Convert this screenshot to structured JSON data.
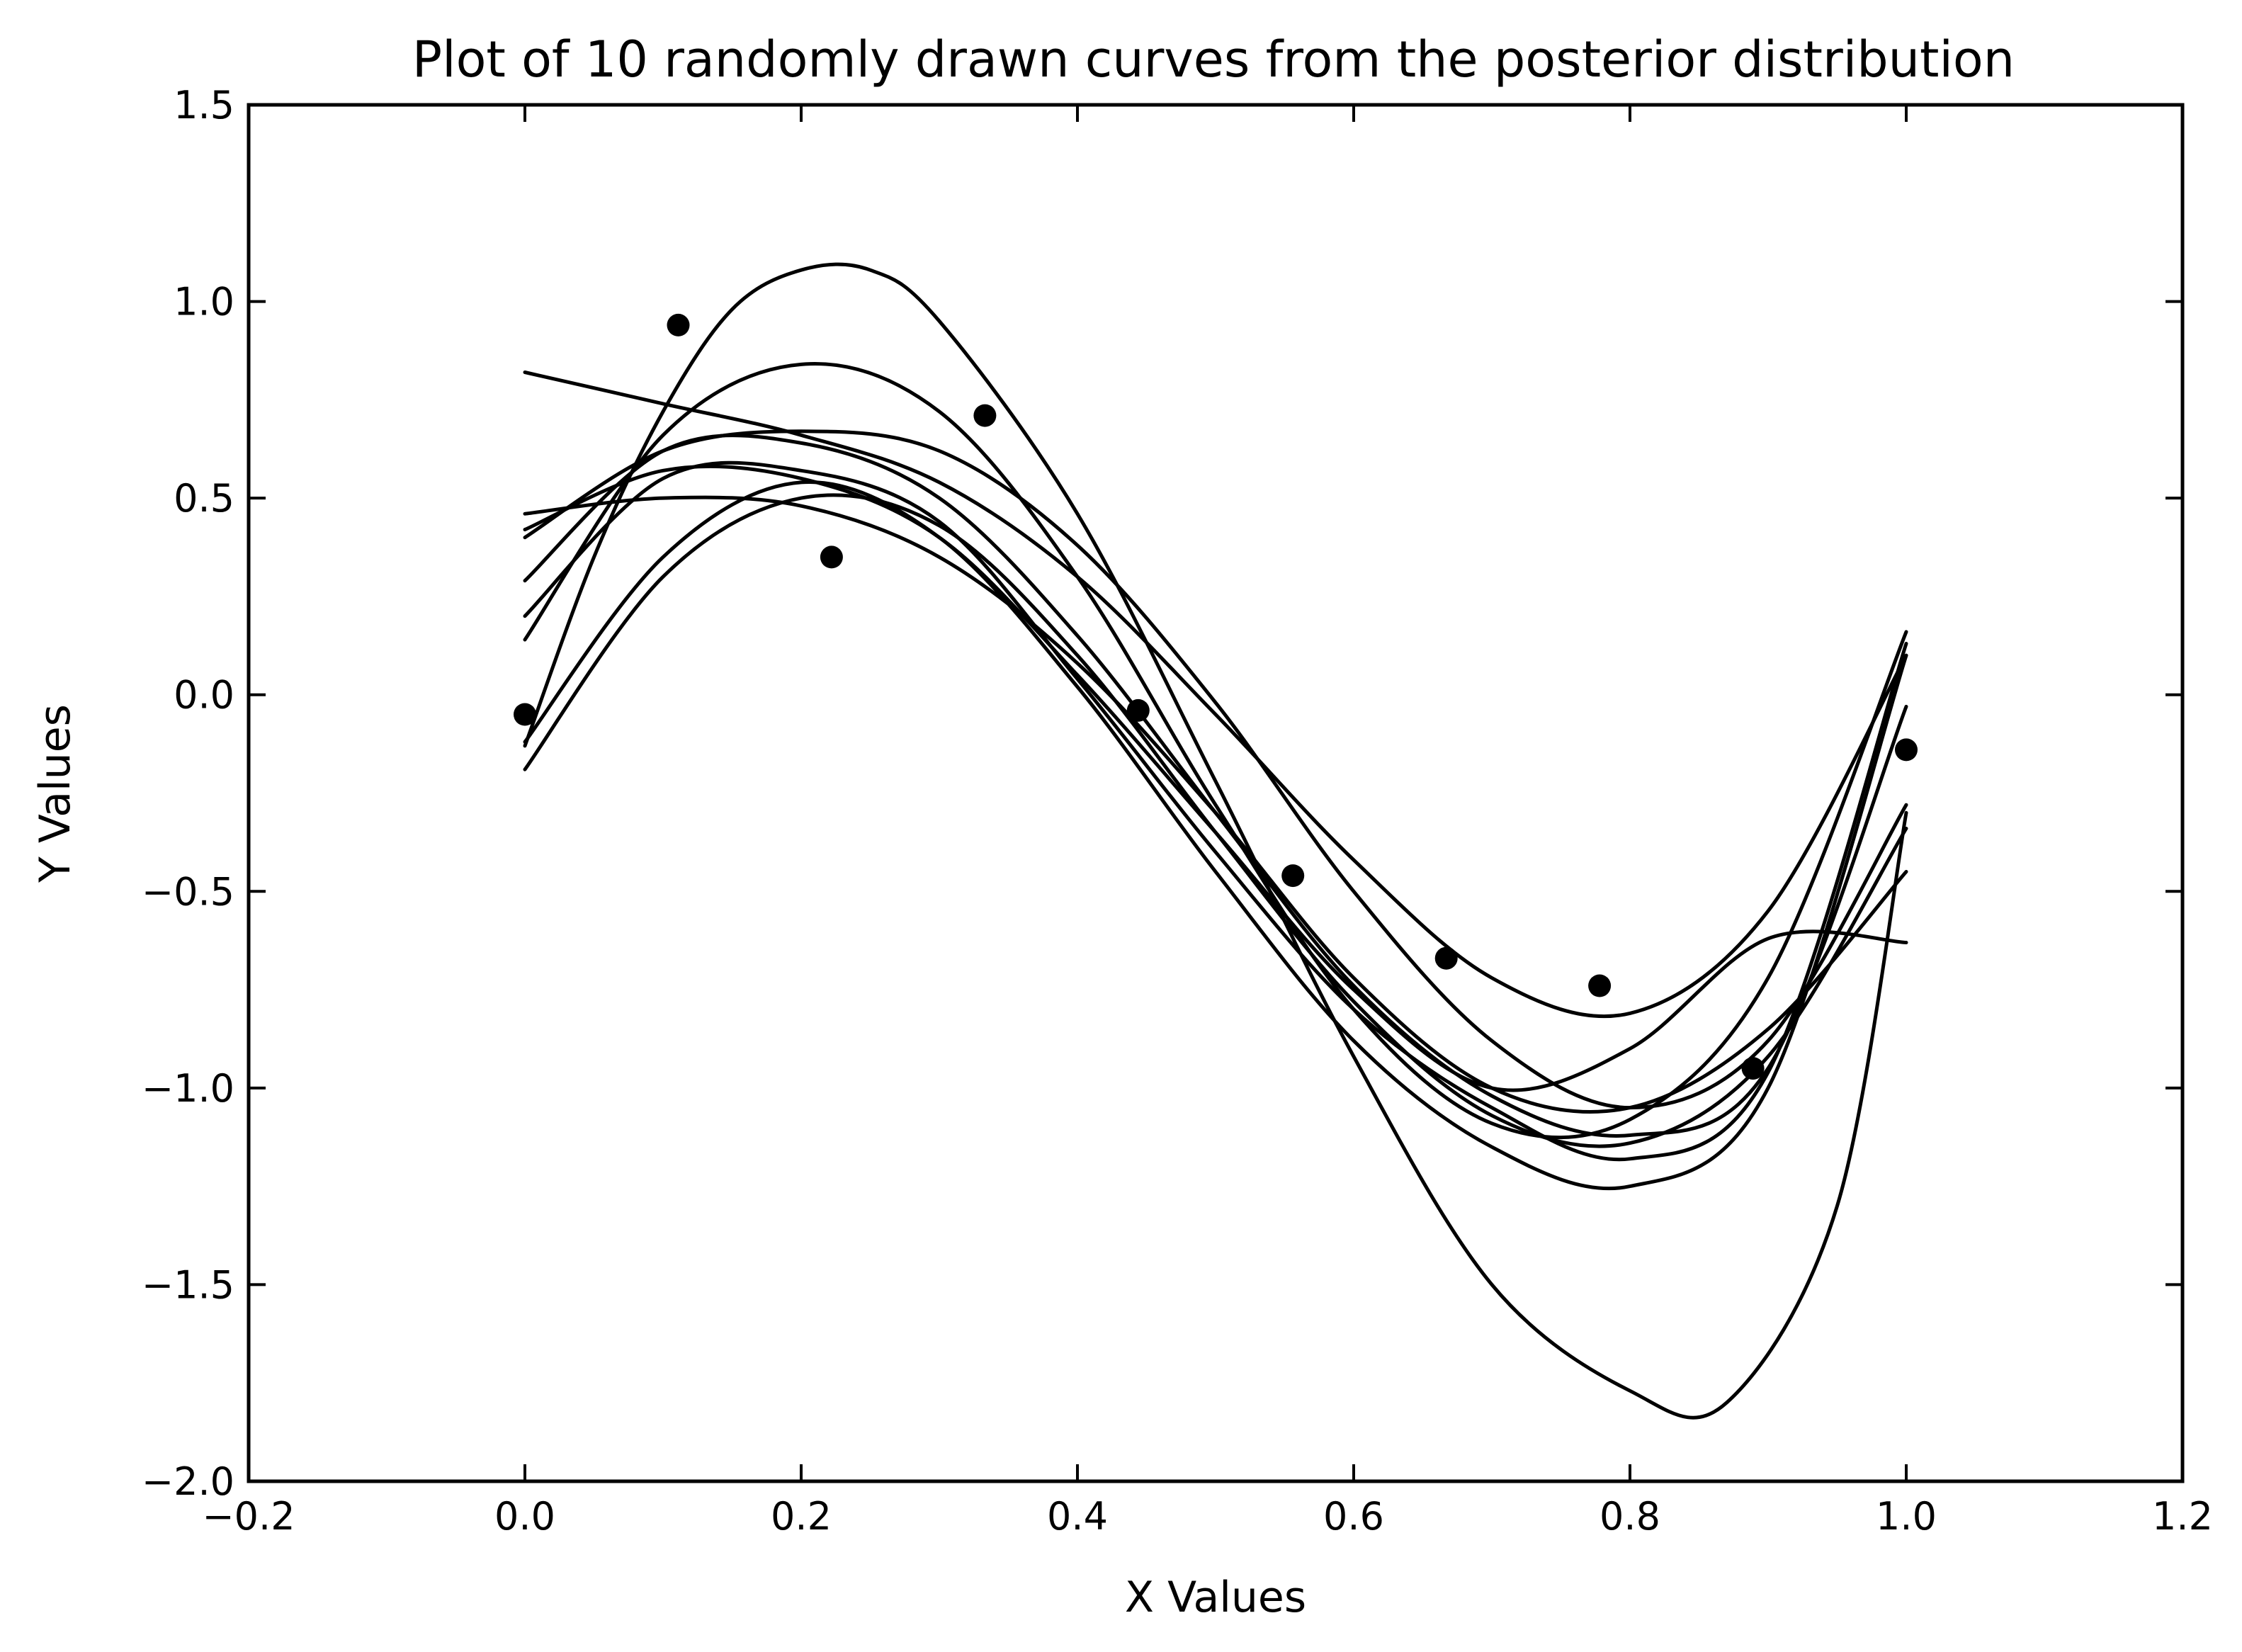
{
  "chart_data": {
    "type": "line",
    "title": "Plot of 10 randomly drawn curves from the posterior distribution",
    "xlabel": "X Values",
    "ylabel": "Y Values",
    "xlim": [
      -0.2,
      1.2
    ],
    "ylim": [
      -2.0,
      1.5
    ],
    "xticks": [
      -0.2,
      0.0,
      0.2,
      0.4,
      0.6,
      0.8,
      1.0,
      1.2
    ],
    "xtick_labels": [
      "−0.2",
      "0.0",
      "0.2",
      "0.4",
      "0.6",
      "0.8",
      "1.0",
      "1.2"
    ],
    "yticks": [
      -2.0,
      -1.5,
      -1.0,
      -0.5,
      0.0,
      0.5,
      1.0,
      1.5
    ],
    "ytick_labels": [
      "−2.0",
      "−1.5",
      "−1.0",
      "−0.5",
      "0.0",
      "0.5",
      "1.0",
      "1.5"
    ],
    "grid": false,
    "legend": "none",
    "color": "#000000",
    "scatter": {
      "x": [
        0.0,
        0.111,
        0.222,
        0.333,
        0.444,
        0.556,
        0.667,
        0.778,
        0.889,
        1.0
      ],
      "y": [
        -0.05,
        0.94,
        0.35,
        0.71,
        -0.04,
        -0.46,
        -0.67,
        -0.74,
        -0.95,
        -0.14
      ]
    },
    "series": [
      {
        "x": [
          0.0,
          0.1,
          0.2,
          0.3,
          0.4,
          0.5,
          0.6,
          0.7,
          0.8,
          0.9,
          1.0
        ],
        "y": [
          0.82,
          0.74,
          0.66,
          0.54,
          0.3,
          -0.05,
          -0.42,
          -0.72,
          -0.81,
          -0.55,
          0.1
        ]
      },
      {
        "x": [
          0.0,
          0.05,
          0.1,
          0.15,
          0.2,
          0.25,
          0.3,
          0.4,
          0.5,
          0.6,
          0.7,
          0.8,
          0.87,
          0.95,
          1.0
        ],
        "y": [
          -0.13,
          0.35,
          0.72,
          0.98,
          1.08,
          1.08,
          0.95,
          0.46,
          -0.22,
          -0.92,
          -1.5,
          -1.77,
          -1.8,
          -1.3,
          -0.3
        ]
      },
      {
        "x": [
          0.0,
          0.1,
          0.2,
          0.3,
          0.4,
          0.5,
          0.6,
          0.7,
          0.8,
          0.9,
          1.0
        ],
        "y": [
          0.14,
          0.66,
          0.84,
          0.72,
          0.3,
          -0.28,
          -0.8,
          -1.09,
          -1.08,
          -0.72,
          0.16
        ]
      },
      {
        "x": [
          0.0,
          0.1,
          0.2,
          0.3,
          0.4,
          0.5,
          0.6,
          0.7,
          0.8,
          0.9,
          1.0
        ],
        "y": [
          0.4,
          0.62,
          0.67,
          0.62,
          0.38,
          -0.02,
          -0.5,
          -0.88,
          -1.05,
          -0.88,
          -0.28
        ]
      },
      {
        "x": [
          0.0,
          0.1,
          0.2,
          0.3,
          0.4,
          0.5,
          0.6,
          0.7,
          0.8,
          0.9,
          1.0
        ],
        "y": [
          0.29,
          0.62,
          0.64,
          0.5,
          0.15,
          -0.3,
          -0.74,
          -1.02,
          -1.12,
          -0.95,
          -0.03
        ]
      },
      {
        "x": [
          0.0,
          0.1,
          0.2,
          0.3,
          0.4,
          0.5,
          0.6,
          0.7,
          0.8,
          0.9,
          1.0
        ],
        "y": [
          0.46,
          0.5,
          0.48,
          0.35,
          0.08,
          -0.3,
          -0.72,
          -1.0,
          -1.05,
          -0.85,
          -0.45
        ]
      },
      {
        "x": [
          0.0,
          0.1,
          0.2,
          0.3,
          0.4,
          0.5,
          0.6,
          0.7,
          0.8,
          0.9,
          1.0
        ],
        "y": [
          0.42,
          0.57,
          0.55,
          0.4,
          0.05,
          -0.35,
          -0.75,
          -1.0,
          -0.9,
          -0.62,
          -0.63
        ]
      },
      {
        "x": [
          0.0,
          0.1,
          0.2,
          0.3,
          0.4,
          0.5,
          0.6,
          0.7,
          0.8,
          0.9,
          1.0
        ],
        "y": [
          0.2,
          0.55,
          0.57,
          0.44,
          0.04,
          -0.4,
          -0.8,
          -1.05,
          -1.18,
          -0.96,
          0.13
        ]
      },
      {
        "x": [
          0.0,
          0.1,
          0.2,
          0.3,
          0.4,
          0.5,
          0.6,
          0.7,
          0.8,
          0.9,
          1.0
        ],
        "y": [
          -0.19,
          0.3,
          0.5,
          0.43,
          0.1,
          -0.35,
          -0.78,
          -1.07,
          -1.14,
          -0.92,
          -0.34
        ]
      },
      {
        "x": [
          0.0,
          0.1,
          0.2,
          0.3,
          0.4,
          0.5,
          0.6,
          0.7,
          0.8,
          0.9,
          1.0
        ],
        "y": [
          -0.12,
          0.35,
          0.54,
          0.4,
          0.02,
          -0.45,
          -0.88,
          -1.15,
          -1.25,
          -1.0,
          0.1
        ]
      }
    ]
  }
}
